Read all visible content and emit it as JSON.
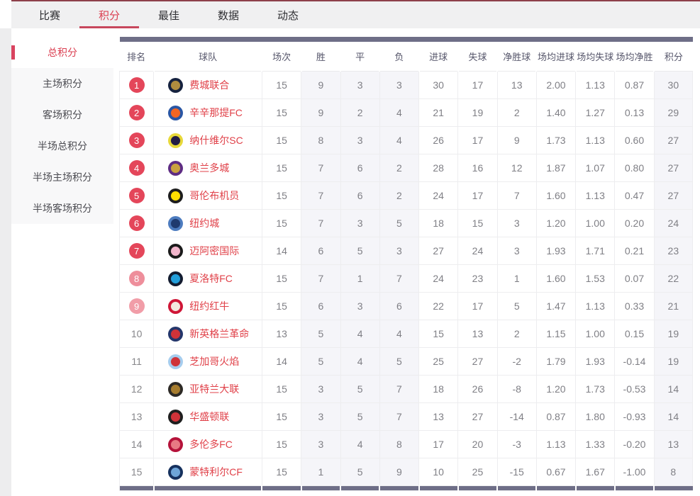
{
  "nav": {
    "tabs": [
      {
        "label": "比赛",
        "active": false
      },
      {
        "label": "积分",
        "active": true
      },
      {
        "label": "最佳",
        "active": false
      },
      {
        "label": "数据",
        "active": false
      },
      {
        "label": "动态",
        "active": false
      }
    ]
  },
  "sidebar": {
    "items": [
      {
        "label": "总积分",
        "active": true
      },
      {
        "label": "主场积分",
        "active": false
      },
      {
        "label": "客场积分",
        "active": false
      },
      {
        "label": "半场总积分",
        "active": false
      },
      {
        "label": "半场主场积分",
        "active": false
      },
      {
        "label": "半场客场积分",
        "active": false
      }
    ]
  },
  "colors": {
    "accent_red": "#db3f51",
    "badge_solid": "#e4465a",
    "badge_light_8": "#ee8e9b",
    "badge_light_9": "#f19da8",
    "header_slate": "#6e6e87",
    "team_name_red": "#e04048",
    "shaded_column_bg": "#f5f5f9"
  },
  "table": {
    "headers": [
      "排名",
      "球队",
      "场次",
      "胜",
      "平",
      "负",
      "进球",
      "失球",
      "净胜球",
      "场均进球",
      "场均失球",
      "场均净胜",
      "积分"
    ],
    "shaded_value_indexes": [
      1,
      2,
      3,
      10
    ],
    "rows": [
      {
        "rank": "1",
        "badge": "solid",
        "team": "费城联合",
        "logo_outer": "#16223f",
        "logo_inner": "#b08d3f",
        "values": [
          "15",
          "9",
          "3",
          "3",
          "30",
          "17",
          "13",
          "2.00",
          "1.13",
          "0.87",
          "30"
        ]
      },
      {
        "rank": "2",
        "badge": "solid",
        "team": "辛辛那提FC",
        "logo_outer": "#2a56a4",
        "logo_inner": "#f26522",
        "values": [
          "15",
          "9",
          "2",
          "4",
          "21",
          "19",
          "2",
          "1.40",
          "1.27",
          "0.13",
          "29"
        ]
      },
      {
        "rank": "3",
        "badge": "solid",
        "team": "纳什维尔SC",
        "logo_outer": "#e7d83a",
        "logo_inner": "#221c45",
        "values": [
          "15",
          "8",
          "3",
          "4",
          "26",
          "17",
          "9",
          "1.73",
          "1.13",
          "0.60",
          "27"
        ]
      },
      {
        "rank": "4",
        "badge": "solid",
        "team": "奥兰多城",
        "logo_outer": "#5e2c83",
        "logo_inner": "#c9a23f",
        "values": [
          "15",
          "7",
          "6",
          "2",
          "28",
          "16",
          "12",
          "1.87",
          "1.07",
          "0.80",
          "27"
        ]
      },
      {
        "rank": "5",
        "badge": "solid",
        "team": "哥伦布机员",
        "logo_outer": "#1d1d1d",
        "logo_inner": "#fedd00",
        "values": [
          "15",
          "7",
          "6",
          "2",
          "24",
          "17",
          "7",
          "1.60",
          "1.13",
          "0.47",
          "27"
        ]
      },
      {
        "rank": "6",
        "badge": "solid",
        "team": "纽约城",
        "logo_outer": "#4d7cbf",
        "logo_inner": "#1f3a6e",
        "values": [
          "15",
          "7",
          "3",
          "5",
          "18",
          "15",
          "3",
          "1.20",
          "1.00",
          "0.20",
          "24"
        ]
      },
      {
        "rank": "7",
        "badge": "solid",
        "team": "迈阿密国际",
        "logo_outer": "#1b1b1b",
        "logo_inner": "#f2b6cc",
        "values": [
          "14",
          "6",
          "5",
          "3",
          "27",
          "24",
          "3",
          "1.93",
          "1.71",
          "0.21",
          "23"
        ]
      },
      {
        "rank": "8",
        "badge": "light8",
        "team": "夏洛特FC",
        "logo_outer": "#131c30",
        "logo_inner": "#239fdb",
        "values": [
          "15",
          "7",
          "1",
          "7",
          "24",
          "23",
          "1",
          "1.60",
          "1.53",
          "0.07",
          "22"
        ]
      },
      {
        "rank": "9",
        "badge": "light9",
        "team": "纽约红牛",
        "logo_outer": "#cf1637",
        "logo_inner": "#f3e9df",
        "values": [
          "15",
          "6",
          "3",
          "6",
          "22",
          "17",
          "5",
          "1.47",
          "1.13",
          "0.33",
          "21"
        ]
      },
      {
        "rank": "10",
        "badge": "none",
        "team": "新英格兰革命",
        "logo_outer": "#24366b",
        "logo_inner": "#cf3339",
        "values": [
          "13",
          "5",
          "4",
          "4",
          "15",
          "13",
          "2",
          "1.15",
          "1.00",
          "0.15",
          "19"
        ]
      },
      {
        "rank": "11",
        "badge": "none",
        "team": "芝加哥火焰",
        "logo_outer": "#a6cdee",
        "logo_inner": "#cf3339",
        "values": [
          "14",
          "5",
          "4",
          "5",
          "25",
          "27",
          "-2",
          "1.79",
          "1.93",
          "-0.14",
          "19"
        ]
      },
      {
        "rank": "12",
        "badge": "none",
        "team": "亚特兰大联",
        "logo_outer": "#2d2a26",
        "logo_inner": "#a67c2e",
        "values": [
          "15",
          "3",
          "5",
          "7",
          "18",
          "26",
          "-8",
          "1.20",
          "1.73",
          "-0.53",
          "14"
        ]
      },
      {
        "rank": "13",
        "badge": "none",
        "team": "华盛顿联",
        "logo_outer": "#1f1f1f",
        "logo_inner": "#cf3339",
        "values": [
          "15",
          "3",
          "5",
          "7",
          "13",
          "27",
          "-14",
          "0.87",
          "1.80",
          "-0.93",
          "14"
        ]
      },
      {
        "rank": "14",
        "badge": "none",
        "team": "多伦多FC",
        "logo_outer": "#b5123a",
        "logo_inner": "#e87983",
        "values": [
          "15",
          "3",
          "4",
          "8",
          "17",
          "20",
          "-3",
          "1.13",
          "1.33",
          "-0.20",
          "13"
        ]
      },
      {
        "rank": "15",
        "badge": "none",
        "team": "蒙特利尔CF",
        "logo_outer": "#16315e",
        "logo_inner": "#6ea5d8",
        "values": [
          "15",
          "1",
          "5",
          "9",
          "10",
          "25",
          "-15",
          "0.67",
          "1.67",
          "-1.00",
          "8"
        ]
      }
    ]
  }
}
